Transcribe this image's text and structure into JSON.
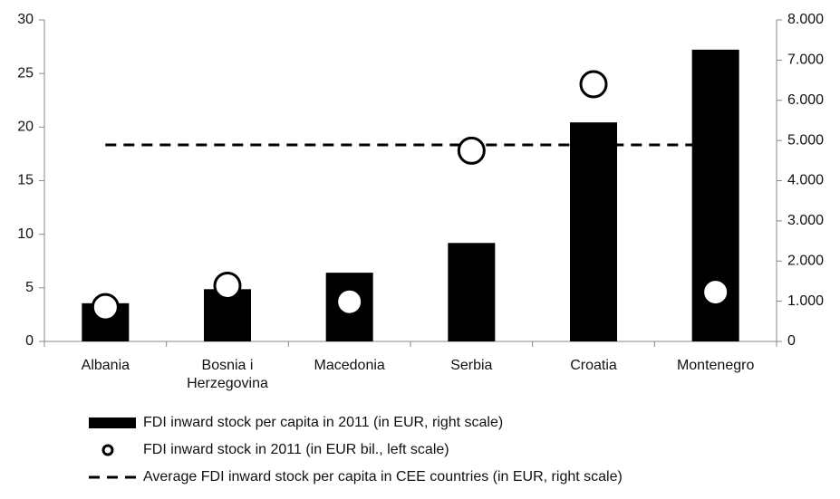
{
  "chart_data": {
    "type": "bar",
    "categories": [
      "Albania",
      "Bosnia i Herzegovina",
      "Macedonia",
      "Serbia",
      "Croatia",
      "Montenegro"
    ],
    "series": [
      {
        "name": "FDI inward stock per capita in 2011 (in EUR, right scale)",
        "color": "#000000",
        "axis": "y2",
        "values": [
          950,
          1300,
          1710,
          2450,
          5450,
          7260
        ]
      },
      {
        "name": "FDI inward stock in 2011 (in EUR bil., left scale)",
        "color": "#000000",
        "axis": "y",
        "values": [
          3.2,
          5.2,
          3.7,
          17.8,
          24.0,
          4.6
        ]
      },
      {
        "name": "Average FDI inward stock per capita in CEE countries (in EUR, right scale)",
        "color": "#000000",
        "axis": "y2",
        "value": 4890
      }
    ],
    "ylim": [
      0,
      30
    ],
    "yticks": [
      0,
      5,
      10,
      15,
      20,
      25,
      30
    ],
    "y2lim": [
      0,
      8000
    ],
    "y2ticks": [
      {
        "value": 0,
        "label": "0"
      },
      {
        "value": 1000,
        "label": "1.000"
      },
      {
        "value": 2000,
        "label": "2.000"
      },
      {
        "value": 3000,
        "label": "3.000"
      },
      {
        "value": 4000,
        "label": "4.000"
      },
      {
        "value": 5000,
        "label": "5.000"
      },
      {
        "value": 6000,
        "label": "6.000"
      },
      {
        "value": 7000,
        "label": "7.000"
      },
      {
        "value": 8000,
        "label": "8.000"
      }
    ]
  }
}
